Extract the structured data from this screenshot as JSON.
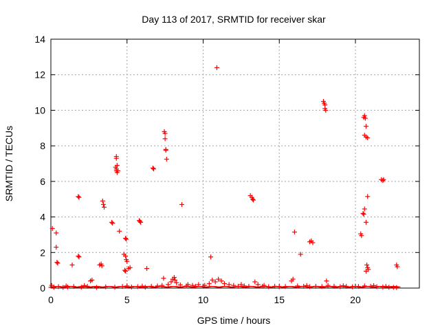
{
  "chart_data": {
    "type": "scatter",
    "title": "Day 113 of 2017, SRMTID for receiver skar",
    "xlabel": "GPS time / hours",
    "ylabel": "SRMTID / TECUs",
    "xlim": [
      0,
      24.2
    ],
    "ylim": [
      0,
      14
    ],
    "xticks": [
      0,
      5,
      10,
      15,
      20
    ],
    "yticks": [
      0,
      2,
      4,
      6,
      8,
      10,
      12,
      14
    ],
    "grid": true,
    "marker": "plus",
    "colors": {
      "points": "#ff0000",
      "axis": "#000000",
      "grid": "#a0a0a0"
    },
    "series": [
      {
        "values": [
          [
            0.1,
            3.35
          ],
          [
            0.35,
            3.1
          ],
          [
            0.35,
            2.3
          ],
          [
            0.4,
            1.45
          ],
          [
            0.45,
            1.4
          ],
          [
            1.4,
            1.3
          ],
          [
            1.8,
            5.15
          ],
          [
            1.85,
            5.1
          ],
          [
            1.8,
            1.8
          ],
          [
            1.85,
            1.75
          ],
          [
            2.6,
            0.4
          ],
          [
            2.7,
            0.45
          ],
          [
            3.2,
            1.3
          ],
          [
            3.3,
            1.35
          ],
          [
            3.35,
            1.25
          ],
          [
            3.4,
            4.9
          ],
          [
            3.45,
            4.7
          ],
          [
            3.5,
            4.55
          ],
          [
            4.0,
            3.7
          ],
          [
            4.05,
            3.65
          ],
          [
            4.3,
            7.4
          ],
          [
            4.3,
            7.3
          ],
          [
            4.25,
            6.8
          ],
          [
            4.3,
            6.7
          ],
          [
            4.3,
            6.6
          ],
          [
            4.35,
            6.5
          ],
          [
            4.4,
            6.6
          ],
          [
            4.35,
            6.9
          ],
          [
            4.5,
            3.2
          ],
          [
            4.9,
            2.8
          ],
          [
            4.95,
            2.75
          ],
          [
            4.8,
            1.9
          ],
          [
            4.9,
            1.8
          ],
          [
            4.95,
            1.6
          ],
          [
            5.0,
            1.5
          ],
          [
            4.85,
            1.0
          ],
          [
            4.9,
            0.95
          ],
          [
            5.1,
            1.1
          ],
          [
            5.2,
            1.15
          ],
          [
            5.8,
            3.8
          ],
          [
            5.85,
            3.75
          ],
          [
            5.9,
            3.7
          ],
          [
            6.3,
            1.1
          ],
          [
            6.7,
            6.75
          ],
          [
            6.75,
            6.7
          ],
          [
            7.4,
            0.55
          ],
          [
            7.45,
            8.8
          ],
          [
            7.5,
            8.7
          ],
          [
            7.5,
            8.4
          ],
          [
            7.55,
            7.8
          ],
          [
            7.55,
            7.75
          ],
          [
            7.6,
            7.25
          ],
          [
            8.6,
            4.7
          ],
          [
            10.5,
            1.75
          ],
          [
            10.9,
            12.4
          ],
          [
            13.1,
            5.2
          ],
          [
            13.2,
            5.1
          ],
          [
            13.25,
            5.0
          ],
          [
            13.3,
            4.95
          ],
          [
            16.0,
            3.15
          ],
          [
            16.4,
            1.9
          ],
          [
            17.0,
            2.6
          ],
          [
            17.1,
            2.65
          ],
          [
            17.2,
            2.55
          ],
          [
            17.9,
            10.5
          ],
          [
            17.95,
            10.4
          ],
          [
            18.0,
            10.3
          ],
          [
            18.0,
            10.1
          ],
          [
            18.05,
            10.0
          ],
          [
            18.1,
            0.4
          ],
          [
            20.35,
            3.05
          ],
          [
            20.4,
            2.95
          ],
          [
            20.5,
            4.2
          ],
          [
            20.55,
            4.15
          ],
          [
            20.6,
            4.45
          ],
          [
            20.55,
            9.6
          ],
          [
            20.6,
            9.7
          ],
          [
            20.65,
            9.55
          ],
          [
            20.6,
            8.6
          ],
          [
            20.7,
            8.5
          ],
          [
            20.8,
            8.45
          ],
          [
            20.7,
            9.1
          ],
          [
            20.7,
            3.7
          ],
          [
            20.8,
            5.15
          ],
          [
            20.75,
            1.3
          ],
          [
            20.8,
            1.15
          ],
          [
            20.85,
            1.05
          ],
          [
            20.7,
            0.95
          ],
          [
            21.7,
            6.1
          ],
          [
            21.8,
            6.05
          ],
          [
            21.85,
            6.1
          ],
          [
            22.7,
            1.3
          ],
          [
            22.75,
            1.2
          ],
          [
            0.2,
            0.05
          ],
          [
            0.5,
            0.08
          ],
          [
            0.8,
            0.04
          ],
          [
            1.1,
            0.06
          ],
          [
            1.5,
            0.09
          ],
          [
            2.0,
            0.05
          ],
          [
            2.4,
            0.1
          ],
          [
            3.0,
            0.04
          ],
          [
            3.6,
            0.07
          ],
          [
            4.2,
            0.05
          ],
          [
            4.7,
            0.09
          ],
          [
            5.3,
            0.06
          ],
          [
            5.7,
            0.08
          ],
          [
            6.2,
            0.05
          ],
          [
            6.6,
            0.1
          ],
          [
            7.0,
            0.12
          ],
          [
            7.3,
            0.15
          ],
          [
            7.7,
            0.2
          ],
          [
            7.9,
            0.35
          ],
          [
            8.0,
            0.5
          ],
          [
            8.1,
            0.6
          ],
          [
            8.15,
            0.45
          ],
          [
            8.25,
            0.3
          ],
          [
            8.5,
            0.18
          ],
          [
            8.9,
            0.12
          ],
          [
            9.3,
            0.15
          ],
          [
            9.7,
            0.2
          ],
          [
            10.1,
            0.15
          ],
          [
            10.4,
            0.25
          ],
          [
            10.6,
            0.45
          ],
          [
            10.8,
            0.35
          ],
          [
            11.0,
            0.5
          ],
          [
            11.2,
            0.4
          ],
          [
            11.4,
            0.25
          ],
          [
            11.7,
            0.2
          ],
          [
            12.0,
            0.15
          ],
          [
            12.3,
            0.1
          ],
          [
            12.7,
            0.12
          ],
          [
            13.0,
            0.1
          ],
          [
            13.4,
            0.35
          ],
          [
            13.6,
            0.2
          ],
          [
            13.9,
            0.1
          ],
          [
            14.3,
            0.08
          ],
          [
            14.7,
            0.1
          ],
          [
            15.0,
            0.07
          ],
          [
            15.4,
            0.09
          ],
          [
            15.8,
            0.4
          ],
          [
            15.9,
            0.5
          ],
          [
            16.2,
            0.12
          ],
          [
            16.6,
            0.1
          ],
          [
            17.0,
            0.08
          ],
          [
            17.4,
            0.1
          ],
          [
            17.8,
            0.09
          ],
          [
            18.2,
            0.15
          ],
          [
            18.6,
            0.1
          ],
          [
            19.0,
            0.08
          ],
          [
            19.4,
            0.1
          ],
          [
            19.8,
            0.07
          ],
          [
            20.2,
            0.09
          ],
          [
            20.6,
            0.12
          ],
          [
            21.0,
            0.1
          ],
          [
            21.4,
            0.08
          ],
          [
            21.8,
            0.06
          ],
          [
            22.2,
            0.05
          ],
          [
            22.5,
            0.04
          ],
          [
            22.7,
            0.03
          ],
          [
            0.05,
            0.15
          ],
          [
            1.0,
            0.12
          ],
          [
            2.2,
            0.14
          ],
          [
            5.0,
            0.12
          ],
          [
            6.0,
            0.11
          ],
          [
            9.0,
            0.2
          ],
          [
            9.5,
            0.1
          ],
          [
            12.5,
            0.2
          ],
          [
            14.0,
            0.15
          ],
          [
            16.8,
            0.14
          ],
          [
            19.2,
            0.13
          ],
          [
            21.2,
            0.14
          ],
          [
            22.0,
            0.1
          ]
        ]
      }
    ]
  }
}
